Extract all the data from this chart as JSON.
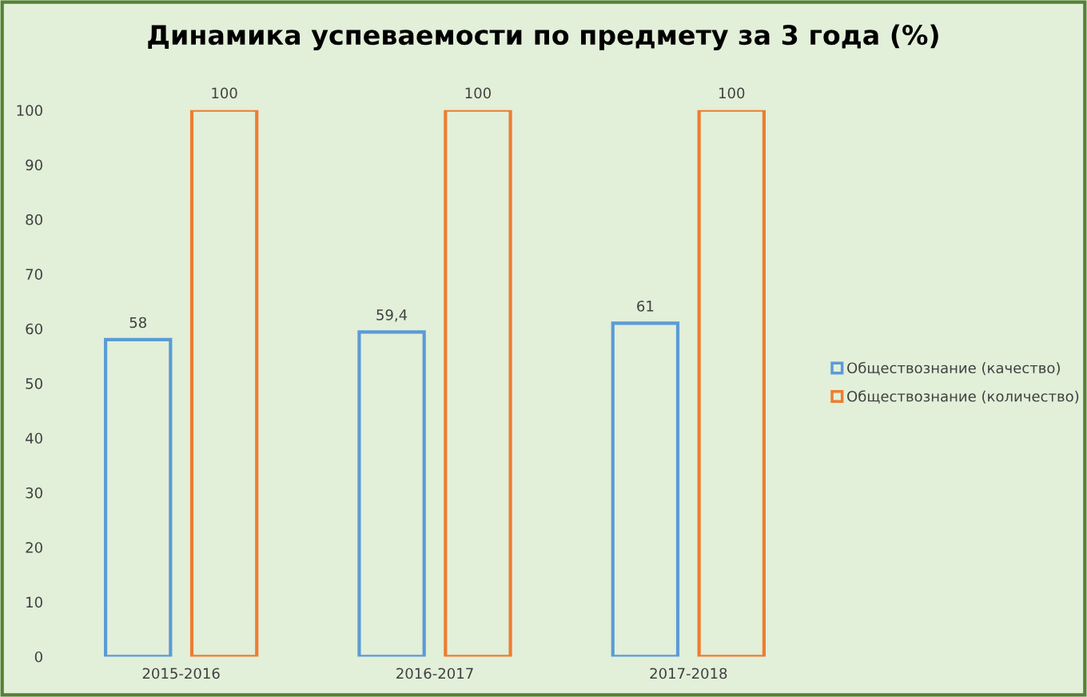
{
  "chart_data": {
    "type": "bar",
    "title": "Динамика успеваемости по предмету за 3 года (%)",
    "categories": [
      "2015-2016",
      "2016-2017",
      "2017-2018"
    ],
    "series": [
      {
        "name": "Обществознание (качество)",
        "color": "#5b9bd5",
        "values": [
          58,
          59.4,
          61
        ],
        "value_labels": [
          "58",
          "59,4",
          "61"
        ]
      },
      {
        "name": "Обществознание (количество)",
        "color": "#ed7d31",
        "values": [
          100,
          100,
          100
        ],
        "value_labels": [
          "100",
          "100",
          "100"
        ]
      }
    ],
    "ylim": [
      0,
      100
    ],
    "yticks": [
      0,
      10,
      20,
      30,
      40,
      50,
      60,
      70,
      80,
      90,
      100
    ],
    "grid": false,
    "legend": "right"
  }
}
